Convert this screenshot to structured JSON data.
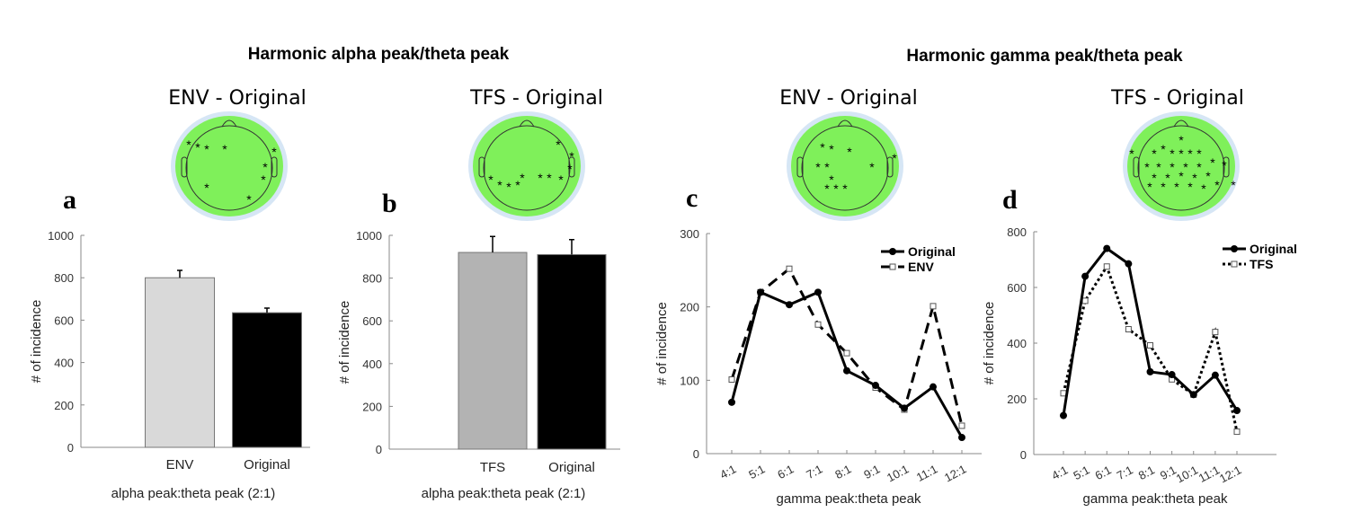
{
  "group_titles": [
    "Harmonic alpha peak/theta peak",
    "Harmonic gamma peak/theta peak"
  ],
  "colors": {
    "head_fill": "#7ff05a",
    "head_ring": "#d6e6f5",
    "env_bar": "#d9d9d9",
    "tfs_bar": "#b3b3b3",
    "original_bar": "#000000"
  },
  "chart_data": [
    {
      "panel": "a",
      "subtitle": "ENV - Original",
      "type": "bar",
      "categories": [
        "ENV",
        "Original"
      ],
      "values": [
        800,
        635
      ],
      "errors": [
        35,
        22
      ],
      "bar_colors": [
        "#d9d9d9",
        "#000000"
      ],
      "xlabel": "alpha peak:theta peak (2:1)",
      "ylabel": "# of incidence",
      "ylim": [
        0,
        1000
      ],
      "yticks": [
        "0",
        "200",
        "400",
        "600",
        "800",
        "1000"
      ]
    },
    {
      "panel": "b",
      "subtitle": "TFS - Original",
      "type": "bar",
      "categories": [
        "TFS",
        "Original"
      ],
      "values": [
        920,
        910
      ],
      "errors": [
        75,
        70
      ],
      "bar_colors": [
        "#b3b3b3",
        "#000000"
      ],
      "xlabel": "alpha peak:theta peak (2:1)",
      "ylabel": "# of incidence",
      "ylim": [
        0,
        1000
      ],
      "yticks": [
        "0",
        "200",
        "400",
        "600",
        "800",
        "1000"
      ]
    },
    {
      "panel": "c",
      "subtitle": "ENV - Original",
      "type": "line",
      "categories": [
        "4:1",
        "5:1",
        "6:1",
        "7:1",
        "8:1",
        "9:1",
        "10:1",
        "11:1",
        "12:1"
      ],
      "series": [
        {
          "name": "Original",
          "values": [
            70,
            220,
            203,
            220,
            113,
            93,
            62,
            91,
            22
          ],
          "style": "solid"
        },
        {
          "name": "ENV",
          "values": [
            101,
            220,
            252,
            176,
            137,
            90,
            60,
            201,
            38
          ],
          "style": "dashed"
        }
      ],
      "xlabel": "gamma peak:theta peak",
      "ylabel": "# of incidence",
      "ylim": [
        0,
        300
      ],
      "yticks": [
        "0",
        "100",
        "200",
        "300"
      ],
      "legend": "top-right"
    },
    {
      "panel": "d",
      "subtitle": "TFS - Original",
      "type": "line",
      "categories": [
        "4:1",
        "5:1",
        "6:1",
        "7:1",
        "8:1",
        "9:1",
        "10:1",
        "11:1",
        "12:1"
      ],
      "series": [
        {
          "name": "Original",
          "values": [
            140,
            640,
            740,
            685,
            297,
            287,
            215,
            285,
            158
          ],
          "style": "solid"
        },
        {
          "name": "TFS",
          "values": [
            220,
            552,
            675,
            450,
            392,
            270,
            215,
            440,
            82
          ],
          "style": "dotted"
        }
      ],
      "xlabel": "gamma peak:theta peak",
      "ylabel": "# of incidence",
      "ylim": [
        0,
        800
      ],
      "yticks": [
        "0",
        "200",
        "400",
        "600",
        "800"
      ],
      "legend": "top-right"
    }
  ]
}
